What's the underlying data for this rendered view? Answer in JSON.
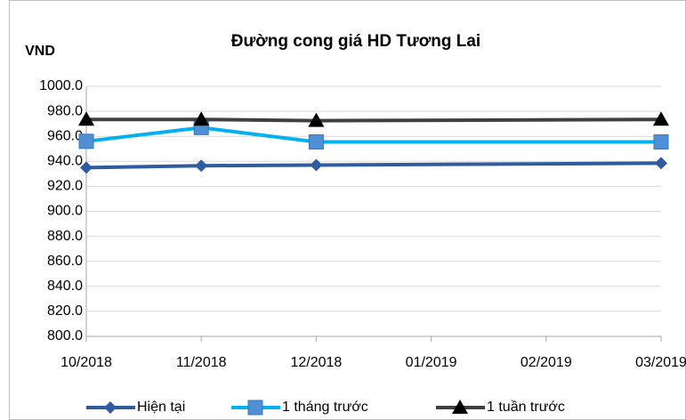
{
  "chart_data": {
    "type": "line",
    "title": "Đường cong giá HD Tương Lai",
    "y_label": "VND",
    "xticks": [
      "10/2018",
      "11/2018",
      "12/2018",
      "01/2019",
      "02/2019",
      "03/2019"
    ],
    "x": [
      "10/2018",
      "11/2018",
      "12/2018",
      "03/2019"
    ],
    "ylim": [
      800,
      1000
    ],
    "yticks": [
      {
        "value": 800,
        "label": "800.0"
      },
      {
        "value": 820,
        "label": "820.0"
      },
      {
        "value": 840,
        "label": "840.0"
      },
      {
        "value": 860,
        "label": "860.0"
      },
      {
        "value": 880,
        "label": "880.0"
      },
      {
        "value": 900,
        "label": "900.0"
      },
      {
        "value": 920,
        "label": "920.0"
      },
      {
        "value": 940,
        "label": "940.0"
      },
      {
        "value": 960,
        "label": "960.0"
      },
      {
        "value": 980,
        "label": "980.0"
      },
      {
        "value": 1000,
        "label": "1000.0"
      }
    ],
    "grid": true,
    "legend": "bottom",
    "series": [
      {
        "name": "Hiện tại",
        "color": "#2e5c9e",
        "marker": "diamond",
        "values": [
          935,
          936.5,
          937,
          938.5
        ]
      },
      {
        "name": "1 tháng trước",
        "color": "#00b0f0",
        "marker": "square",
        "values": [
          956,
          967,
          955.5,
          955.5
        ]
      },
      {
        "name": "1 tuần trước",
        "color": "#404040",
        "marker": "triangle",
        "values": [
          973.5,
          973.5,
          972.5,
          973.5
        ]
      }
    ]
  }
}
